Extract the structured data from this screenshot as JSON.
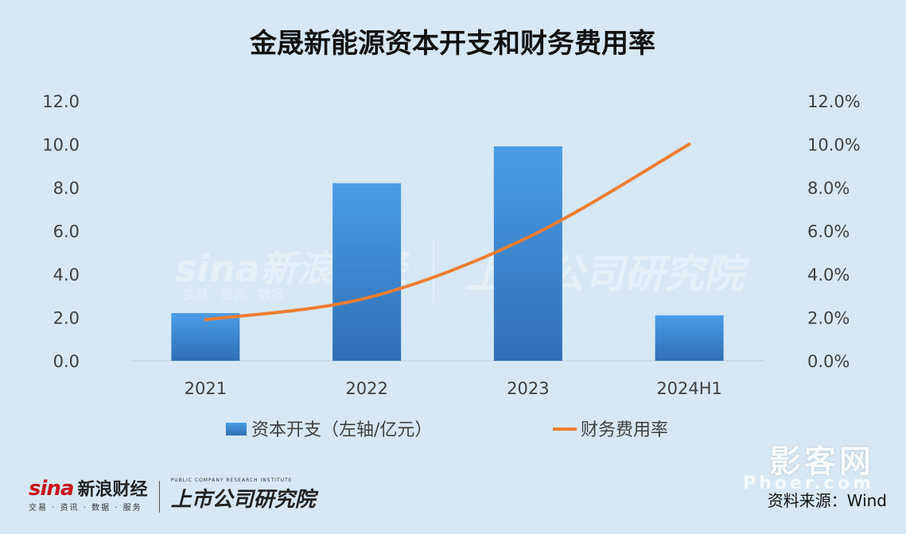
{
  "chart_data": {
    "type": "bar",
    "title": "金晟新能源资本开支和财务费用率",
    "categories": [
      "2021",
      "2022",
      "2023",
      "2024H1"
    ],
    "series": [
      {
        "name": "资本开支（左轴/亿元）",
        "type": "bar",
        "axis": "left",
        "values": [
          2.2,
          8.2,
          9.9,
          2.1
        ]
      },
      {
        "name": "财务费用率",
        "type": "line",
        "axis": "right",
        "values": [
          1.9,
          2.9,
          5.7,
          10.0
        ]
      }
    ],
    "left_axis": {
      "ticks": [
        "0.0",
        "2.0",
        "4.0",
        "6.0",
        "8.0",
        "10.0",
        "12.0"
      ],
      "ylim": [
        0,
        12
      ]
    },
    "right_axis": {
      "ticks": [
        "0.0%",
        "2.0%",
        "4.0%",
        "6.0%",
        "8.0%",
        "10.0%",
        "12.0%"
      ],
      "ylim": [
        0,
        12
      ]
    },
    "grid": false,
    "legend": "bottom",
    "colors": {
      "bar_top": "#4a9de6",
      "bar_bottom": "#2f6fb4",
      "line": "#ed7d31",
      "background": "#d6e8f5"
    }
  },
  "watermark": {
    "brand": "sina新浪财经",
    "brand_sub": "交易 · 资讯 · 数据",
    "institute": "上市公司研究院"
  },
  "footer": {
    "sina_logo": "sina",
    "sina_name": "新浪财经",
    "sina_sub": "交易 · 资讯 · 数据 · 服务",
    "institute": "上市公司研究院",
    "institute_sub": "PUBLIC COMPANY RESEARCH INSTITUTE",
    "corner_mark": "影客网",
    "corner_sub": "Phoer.com",
    "source": "资料来源：Wind"
  }
}
